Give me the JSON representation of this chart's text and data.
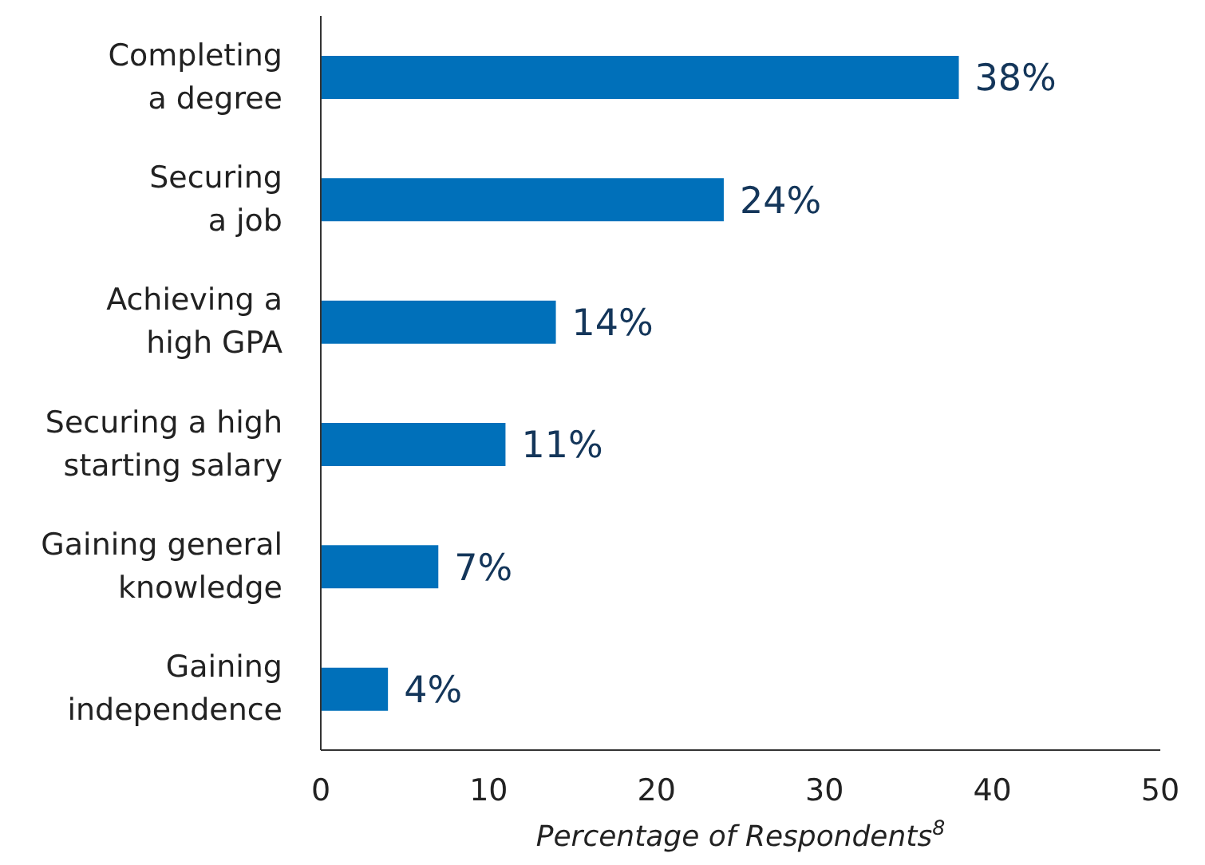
{
  "chart_data": {
    "type": "bar",
    "orientation": "horizontal",
    "categories": [
      "Completing\na degree",
      "Securing\na job",
      "Achieving a\nhigh GPA",
      "Securing a high\nstarting salary",
      "Gaining general\nknowledge",
      "Gaining\nindependence"
    ],
    "values": [
      38,
      24,
      14,
      11,
      7,
      4
    ],
    "value_labels": [
      "38%",
      "24%",
      "14%",
      "11%",
      "7%",
      "4%"
    ],
    "color": "#0070ba",
    "xlim": [
      0,
      50
    ],
    "xticks": [
      0,
      10,
      20,
      30,
      40,
      50
    ],
    "xlabel": "Percentage of Respondents$^{8}$",
    "grid": false,
    "legend": false
  }
}
